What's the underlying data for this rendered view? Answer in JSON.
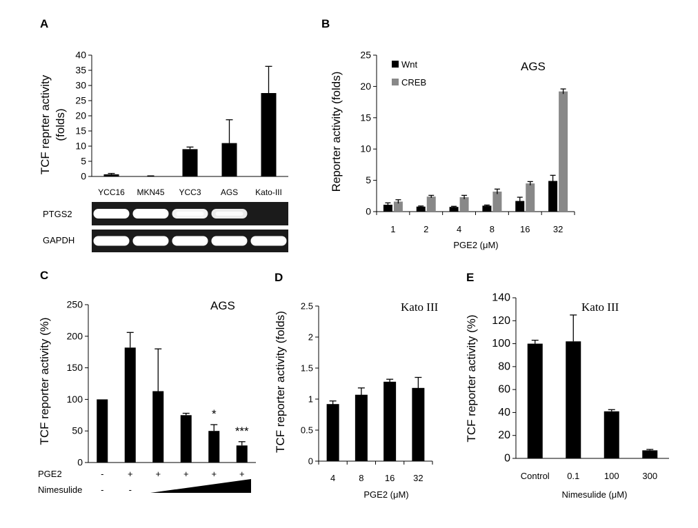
{
  "panels": {
    "A": {
      "letter": "A",
      "chart": {
        "type": "bar",
        "ylabel_line1": "TCF reprter activity",
        "ylabel_line2": "(folds)",
        "ylim": [
          0,
          40
        ],
        "yticks": [
          "0",
          "5",
          "10",
          "15",
          "20",
          "25",
          "30",
          "35",
          "40"
        ],
        "categories": [
          "YCC16",
          "MKN45",
          "YCC3",
          "AGS",
          "Kato-III"
        ],
        "values": [
          0.7,
          0.1,
          9,
          11,
          27.5
        ],
        "errors": [
          0.3,
          0.1,
          0.7,
          7.7,
          8.8
        ]
      },
      "gel_labels": [
        "PTGS2",
        "GAPDH"
      ],
      "gel_bands": {
        "PTGS2": [
          1.0,
          1.0,
          0.9,
          0.85,
          0.0
        ],
        "GAPDH": [
          1.0,
          1.0,
          1.0,
          1.0,
          1.0
        ]
      }
    },
    "B": {
      "letter": "B",
      "chart": {
        "type": "bar",
        "title": "AGS",
        "ylabel": "Reporter activity (folds)",
        "xlabel": "PGE2 (μM)",
        "ylim": [
          0,
          25
        ],
        "yticks": [
          "0",
          "5",
          "10",
          "15",
          "20",
          "25"
        ],
        "categories": [
          "1",
          "2",
          "4",
          "8",
          "16",
          "32"
        ],
        "series": [
          {
            "name": "Wnt",
            "color": "#000000",
            "values": [
              1.1,
              0.8,
              0.75,
              0.95,
              1.7,
              4.9
            ],
            "errors": [
              0.3,
              0.1,
              0.1,
              0.1,
              0.6,
              0.9
            ]
          },
          {
            "name": "CREB",
            "color": "#888888",
            "values": [
              1.6,
              2.4,
              2.3,
              3.2,
              4.5,
              19.2
            ],
            "errors": [
              0.3,
              0.2,
              0.3,
              0.4,
              0.3,
              0.4
            ]
          }
        ],
        "legend": "top-left"
      }
    },
    "C": {
      "letter": "C",
      "chart": {
        "type": "bar",
        "title": "AGS",
        "ylabel": "TCF reporter activity (%)",
        "ylim": [
          0,
          250
        ],
        "yticks": [
          "0",
          "50",
          "100",
          "150",
          "200",
          "250"
        ],
        "values": [
          100,
          182,
          113,
          75,
          50,
          27
        ],
        "errors": [
          0,
          24,
          67,
          3,
          10,
          6
        ],
        "significance": [
          "",
          "",
          "",
          "",
          "*",
          "***"
        ]
      },
      "row_labels": {
        "pge2": "PGE2",
        "nimesulide": "Nimesulide"
      },
      "pge2_marks": [
        "-",
        "+",
        "+",
        "+",
        "+",
        "+"
      ],
      "nimesulide_marks": [
        "-",
        "-"
      ]
    },
    "D": {
      "letter": "D",
      "chart": {
        "type": "bar",
        "title": "Kato III",
        "ylabel": "TCF reporter activity (folds)",
        "xlabel": "PGE2 (μM)",
        "ylim": [
          0,
          2.5
        ],
        "yticks": [
          "0",
          "0.5",
          "1",
          "1.5",
          "2",
          "2.5"
        ],
        "categories": [
          "4",
          "8",
          "16",
          "32"
        ],
        "values": [
          0.92,
          1.07,
          1.28,
          1.18
        ],
        "errors": [
          0.05,
          0.11,
          0.04,
          0.17
        ]
      }
    },
    "E": {
      "letter": "E",
      "chart": {
        "type": "bar",
        "title": "Kato III",
        "ylabel": "TCF reporter activity (%)",
        "xlabel": "Nimesulide  (μM)",
        "ylim": [
          0,
          140
        ],
        "yticks": [
          "0",
          "20",
          "40",
          "60",
          "80",
          "100",
          "120",
          "140"
        ],
        "categories": [
          "Control",
          "0.1",
          "100",
          "300"
        ],
        "values": [
          100,
          102,
          41,
          7
        ],
        "errors": [
          3,
          23,
          1.5,
          0.8
        ]
      }
    }
  }
}
